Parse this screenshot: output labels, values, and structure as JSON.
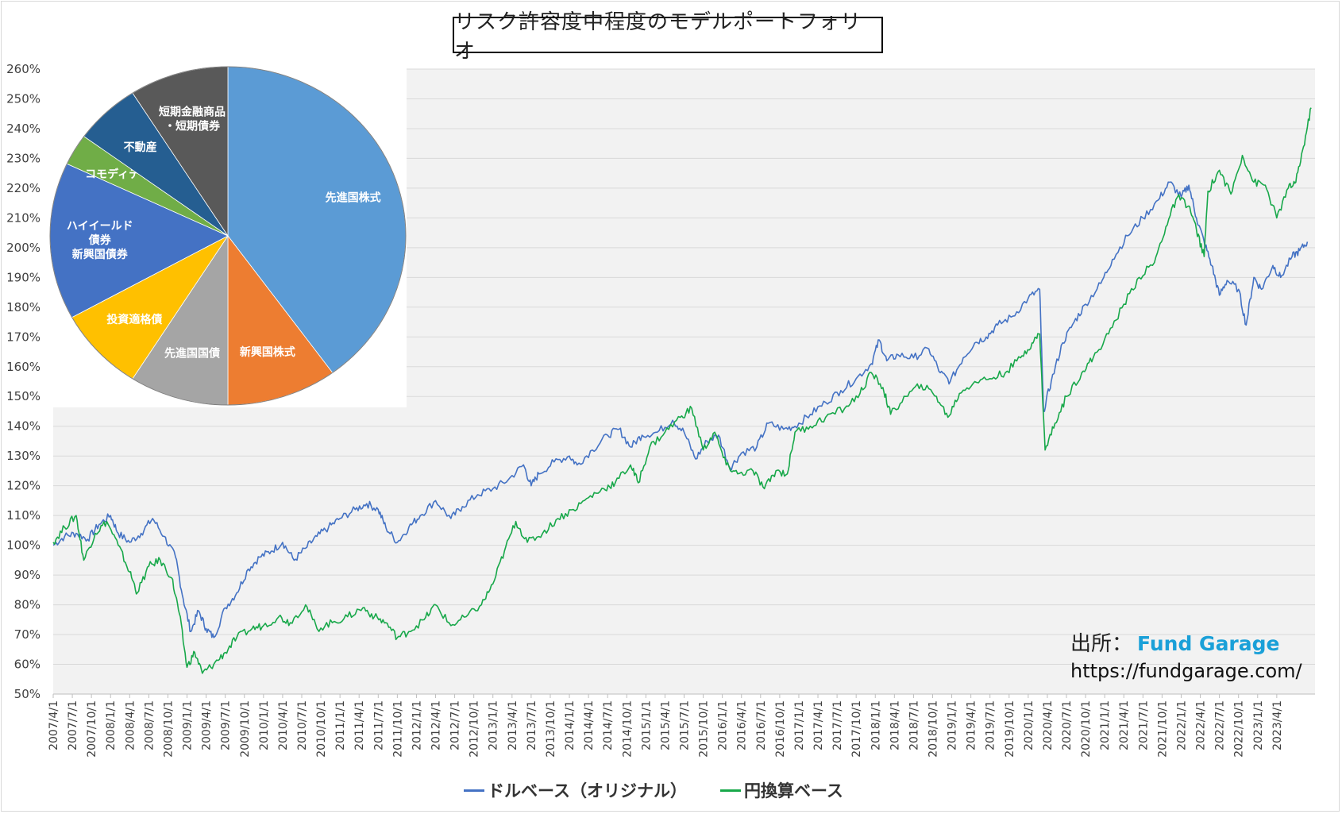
{
  "title": "リスク許容度中程度のモデルポートフォリオ",
  "source": {
    "label": "出所：",
    "brand": "Fund Garage",
    "url": "https://fundgarage.com/"
  },
  "colors": {
    "dollar": "#4472C4",
    "yen": "#18A84A",
    "plot_bg": "#F2F2F2",
    "grid": "#D9D9D9"
  },
  "chart_data": [
    {
      "type": "line",
      "title": "リスク許容度中程度のモデルポートフォリオ",
      "ylim": [
        50,
        260
      ],
      "y_unit": "%",
      "y_ticks": [
        "50%",
        "60%",
        "70%",
        "80%",
        "90%",
        "100%",
        "110%",
        "120%",
        "130%",
        "140%",
        "150%",
        "160%",
        "170%",
        "180%",
        "190%",
        "200%",
        "210%",
        "220%",
        "230%",
        "240%",
        "250%",
        "260%"
      ],
      "x_ticks": [
        "2007/4/1",
        "2007/7/1",
        "2007/10/1",
        "2008/1/1",
        "2008/4/1",
        "2008/7/1",
        "2008/10/1",
        "2009/1/1",
        "2009/4/1",
        "2009/7/1",
        "2009/10/1",
        "2010/1/1",
        "2010/4/1",
        "2010/7/1",
        "2010/10/1",
        "2011/1/1",
        "2011/4/1",
        "2011/7/1",
        "2011/10/1",
        "2012/1/1",
        "2012/4/1",
        "2012/7/1",
        "2012/10/1",
        "2013/1/1",
        "2013/4/1",
        "2013/7/1",
        "2013/10/1",
        "2014/1/1",
        "2014/4/1",
        "2014/7/1",
        "2014/10/1",
        "2015/1/1",
        "2015/4/1",
        "2015/7/1",
        "2015/10/1",
        "2016/1/1",
        "2016/4/1",
        "2016/7/1",
        "2016/10/1",
        "2017/1/1",
        "2017/4/1",
        "2017/7/1",
        "2017/10/1",
        "2018/1/1",
        "2018/4/1",
        "2018/7/1",
        "2018/10/1",
        "2019/1/1",
        "2019/4/1",
        "2019/7/1",
        "2019/10/1",
        "2020/1/1",
        "2020/4/1",
        "2020/7/1",
        "2020/10/1",
        "2021/1/1",
        "2021/4/1",
        "2021/7/1",
        "2021/10/1",
        "2022/1/1",
        "2022/4/1",
        "2022/7/1",
        "2022/10/1",
        "2023/1/1",
        "2023/4/1"
      ],
      "grid": true,
      "legend_position": "bottom",
      "series": [
        {
          "name": "ドルベース（オリジナル）",
          "color": "#4472C4",
          "points": [
            [
              2007.25,
              100
            ],
            [
              2007.4,
              103
            ],
            [
              2007.55,
              104
            ],
            [
              2007.7,
              102
            ],
            [
              2007.85,
              107
            ],
            [
              2008.0,
              110
            ],
            [
              2008.1,
              104
            ],
            [
              2008.25,
              101
            ],
            [
              2008.4,
              104
            ],
            [
              2008.55,
              109
            ],
            [
              2008.7,
              103
            ],
            [
              2008.85,
              96
            ],
            [
              2008.95,
              82
            ],
            [
              2009.05,
              71
            ],
            [
              2009.15,
              78
            ],
            [
              2009.25,
              72
            ],
            [
              2009.35,
              69
            ],
            [
              2009.5,
              79
            ],
            [
              2009.65,
              84
            ],
            [
              2009.8,
              92
            ],
            [
              2009.95,
              96
            ],
            [
              2010.1,
              98
            ],
            [
              2010.25,
              101
            ],
            [
              2010.4,
              95
            ],
            [
              2010.55,
              99
            ],
            [
              2010.7,
              103
            ],
            [
              2010.85,
              106
            ],
            [
              2011.0,
              109
            ],
            [
              2011.2,
              112
            ],
            [
              2011.35,
              114
            ],
            [
              2011.5,
              112
            ],
            [
              2011.6,
              106
            ],
            [
              2011.75,
              101
            ],
            [
              2011.9,
              106
            ],
            [
              2012.05,
              110
            ],
            [
              2012.25,
              115
            ],
            [
              2012.45,
              109
            ],
            [
              2012.6,
              113
            ],
            [
              2012.8,
              117
            ],
            [
              2013.0,
              119
            ],
            [
              2013.2,
              122
            ],
            [
              2013.4,
              127
            ],
            [
              2013.5,
              120
            ],
            [
              2013.6,
              124
            ],
            [
              2013.8,
              128
            ],
            [
              2014.0,
              130
            ],
            [
              2014.1,
              127
            ],
            [
              2014.3,
              132
            ],
            [
              2014.5,
              137
            ],
            [
              2014.65,
              139
            ],
            [
              2014.8,
              133
            ],
            [
              2014.95,
              137
            ],
            [
              2015.15,
              138
            ],
            [
              2015.35,
              142
            ],
            [
              2015.5,
              138
            ],
            [
              2015.65,
              129
            ],
            [
              2015.8,
              135
            ],
            [
              2015.95,
              137
            ],
            [
              2016.1,
              126
            ],
            [
              2016.25,
              131
            ],
            [
              2016.45,
              133
            ],
            [
              2016.6,
              141
            ],
            [
              2016.8,
              139
            ],
            [
              2016.95,
              140
            ],
            [
              2017.15,
              144
            ],
            [
              2017.35,
              148
            ],
            [
              2017.55,
              152
            ],
            [
              2017.75,
              156
            ],
            [
              2017.95,
              161
            ],
            [
              2018.05,
              169
            ],
            [
              2018.15,
              162
            ],
            [
              2018.3,
              164
            ],
            [
              2018.5,
              163
            ],
            [
              2018.7,
              166
            ],
            [
              2018.85,
              158
            ],
            [
              2018.98,
              155
            ],
            [
              2019.15,
              163
            ],
            [
              2019.3,
              168
            ],
            [
              2019.45,
              170
            ],
            [
              2019.6,
              174
            ],
            [
              2019.8,
              177
            ],
            [
              2020.0,
              183
            ],
            [
              2020.15,
              186
            ],
            [
              2020.2,
              145
            ],
            [
              2020.3,
              155
            ],
            [
              2020.45,
              168
            ],
            [
              2020.6,
              175
            ],
            [
              2020.75,
              181
            ],
            [
              2020.95,
              188
            ],
            [
              2021.1,
              196
            ],
            [
              2021.3,
              204
            ],
            [
              2021.5,
              210
            ],
            [
              2021.7,
              216
            ],
            [
              2021.85,
              222
            ],
            [
              2022.0,
              217
            ],
            [
              2022.1,
              221
            ],
            [
              2022.2,
              210
            ],
            [
              2022.3,
              202
            ],
            [
              2022.4,
              194
            ],
            [
              2022.5,
              184
            ],
            [
              2022.6,
              189
            ],
            [
              2022.75,
              186
            ],
            [
              2022.85,
              174
            ],
            [
              2022.95,
              190
            ],
            [
              2023.05,
              186
            ],
            [
              2023.2,
              194
            ],
            [
              2023.3,
              190
            ],
            [
              2023.45,
              197
            ],
            [
              2023.55,
              199
            ],
            [
              2023.65,
              202
            ]
          ]
        },
        {
          "name": "円換算ベース",
          "color": "#18A84A",
          "points": [
            [
              2007.25,
              101
            ],
            [
              2007.4,
              106
            ],
            [
              2007.55,
              110
            ],
            [
              2007.65,
              95
            ],
            [
              2007.8,
              104
            ],
            [
              2007.95,
              108
            ],
            [
              2008.1,
              100
            ],
            [
              2008.25,
              91
            ],
            [
              2008.35,
              84
            ],
            [
              2008.5,
              93
            ],
            [
              2008.65,
              95
            ],
            [
              2008.8,
              89
            ],
            [
              2008.9,
              77
            ],
            [
              2009.0,
              59
            ],
            [
              2009.1,
              64
            ],
            [
              2009.2,
              57
            ],
            [
              2009.35,
              60
            ],
            [
              2009.5,
              64
            ],
            [
              2009.65,
              69
            ],
            [
              2009.85,
              72
            ],
            [
              2010.0,
              73
            ],
            [
              2010.2,
              76
            ],
            [
              2010.35,
              74
            ],
            [
              2010.55,
              80
            ],
            [
              2010.7,
              72
            ],
            [
              2010.9,
              74
            ],
            [
              2011.1,
              76
            ],
            [
              2011.3,
              79
            ],
            [
              2011.45,
              76
            ],
            [
              2011.6,
              74
            ],
            [
              2011.75,
              69
            ],
            [
              2011.9,
              71
            ],
            [
              2012.1,
              75
            ],
            [
              2012.25,
              80
            ],
            [
              2012.45,
              73
            ],
            [
              2012.65,
              76
            ],
            [
              2012.85,
              80
            ],
            [
              2013.0,
              87
            ],
            [
              2013.15,
              98
            ],
            [
              2013.3,
              108
            ],
            [
              2013.45,
              101
            ],
            [
              2013.65,
              104
            ],
            [
              2013.85,
              109
            ],
            [
              2014.05,
              112
            ],
            [
              2014.25,
              116
            ],
            [
              2014.45,
              119
            ],
            [
              2014.6,
              121
            ],
            [
              2014.8,
              127
            ],
            [
              2014.9,
              121
            ],
            [
              2015.05,
              133
            ],
            [
              2015.25,
              138
            ],
            [
              2015.45,
              143
            ],
            [
              2015.6,
              146
            ],
            [
              2015.75,
              132
            ],
            [
              2015.9,
              138
            ],
            [
              2016.05,
              127
            ],
            [
              2016.2,
              124
            ],
            [
              2016.4,
              125
            ],
            [
              2016.55,
              119
            ],
            [
              2016.7,
              125
            ],
            [
              2016.85,
              124
            ],
            [
              2016.95,
              138
            ],
            [
              2017.15,
              140
            ],
            [
              2017.35,
              143
            ],
            [
              2017.6,
              146
            ],
            [
              2017.8,
              151
            ],
            [
              2017.95,
              158
            ],
            [
              2018.1,
              153
            ],
            [
              2018.2,
              144
            ],
            [
              2018.4,
              150
            ],
            [
              2018.6,
              154
            ],
            [
              2018.8,
              150
            ],
            [
              2018.95,
              143
            ],
            [
              2019.1,
              151
            ],
            [
              2019.3,
              155
            ],
            [
              2019.5,
              156
            ],
            [
              2019.7,
              158
            ],
            [
              2019.9,
              163
            ],
            [
              2020.05,
              168
            ],
            [
              2020.15,
              171
            ],
            [
              2020.22,
              132
            ],
            [
              2020.35,
              141
            ],
            [
              2020.5,
              150
            ],
            [
              2020.7,
              158
            ],
            [
              2020.85,
              163
            ],
            [
              2021.05,
              171
            ],
            [
              2021.25,
              181
            ],
            [
              2021.45,
              190
            ],
            [
              2021.65,
              195
            ],
            [
              2021.8,
              207
            ],
            [
              2021.95,
              217
            ],
            [
              2022.1,
              214
            ],
            [
              2022.2,
              206
            ],
            [
              2022.3,
              197
            ],
            [
              2022.35,
              219
            ],
            [
              2022.5,
              226
            ],
            [
              2022.65,
              218
            ],
            [
              2022.8,
              231
            ],
            [
              2022.95,
              222
            ],
            [
              2023.1,
              221
            ],
            [
              2023.25,
              210
            ],
            [
              2023.4,
              220
            ],
            [
              2023.5,
              222
            ],
            [
              2023.6,
              234
            ],
            [
              2023.7,
              247
            ]
          ]
        }
      ]
    },
    {
      "type": "pie",
      "slices": [
        {
          "label": "先進国株式",
          "value": 40,
          "color": "#5B9BD5"
        },
        {
          "label": "新興国株式",
          "value": 10,
          "color": "#ED7D31"
        },
        {
          "label": "先進国国債",
          "value": 9,
          "color": "#A5A5A5"
        },
        {
          "label": "投資適格債",
          "value": 8,
          "color": "#FFC000"
        },
        {
          "label": "ハイイールド\n債券\n新興国債券",
          "value": 15,
          "color": "#4472C4"
        },
        {
          "label": "コモディティ",
          "value": 3,
          "color": "#70AD47"
        },
        {
          "label": "不動産",
          "value": 6,
          "color": "#255E91"
        },
        {
          "label": "短期金融商品\n・短期債券",
          "value": 9,
          "color": "#595959"
        }
      ]
    }
  ]
}
